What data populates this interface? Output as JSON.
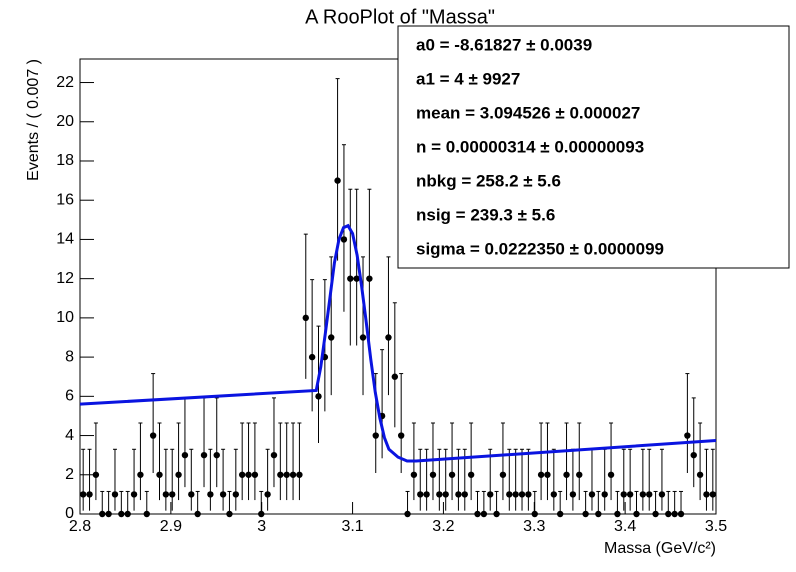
{
  "chart_data": {
    "type": "scatter",
    "title": "A RooPlot of \"Massa\"",
    "xlabel": "Massa (GeV/c²)",
    "ylabel": "Events / ( 0.007 )",
    "xlim": [
      2.8,
      3.5
    ],
    "ylim": [
      0,
      23.2
    ],
    "xticks": [
      2.8,
      2.9,
      3,
      3.1,
      3.2,
      3.3,
      3.4,
      3.5
    ],
    "yticks": [
      0,
      2,
      4,
      6,
      8,
      10,
      12,
      14,
      16,
      18,
      20,
      22
    ],
    "series": [
      {
        "color": "#000000",
        "x": [
          2.8035,
          2.8105,
          2.8175,
          2.8245,
          2.8315,
          2.8385,
          2.8455,
          2.8525,
          2.8595,
          2.8665,
          2.8735,
          2.8805,
          2.8875,
          2.8945,
          2.9015,
          2.9085,
          2.9155,
          2.9225,
          2.9295,
          2.9365,
          2.9435,
          2.9505,
          2.9575,
          2.9645,
          2.9715,
          2.9785,
          2.9855,
          2.9925,
          2.9995,
          3.0065,
          3.0135,
          3.0205,
          3.0275,
          3.0345,
          3.0415,
          3.0485,
          3.0555,
          3.0625,
          3.0695,
          3.0765,
          3.0835,
          3.0905,
          3.0975,
          3.1045,
          3.1115,
          3.1185,
          3.1255,
          3.1325,
          3.1395,
          3.1465,
          3.1535,
          3.1605,
          3.1675,
          3.1745,
          3.1815,
          3.1885,
          3.1955,
          3.2025,
          3.2095,
          3.2165,
          3.2235,
          3.2305,
          3.2375,
          3.2445,
          3.2515,
          3.2585,
          3.2655,
          3.2725,
          3.2795,
          3.2865,
          3.2935,
          3.3005,
          3.3075,
          3.3145,
          3.3215,
          3.3285,
          3.3355,
          3.3425,
          3.3495,
          3.3565,
          3.3635,
          3.3705,
          3.3775,
          3.3845,
          3.3915,
          3.3985,
          3.4055,
          3.4125,
          3.4195,
          3.4265,
          3.4335,
          3.4405,
          3.4475,
          3.4545,
          3.4615,
          3.4685,
          3.4755,
          3.4825,
          3.4895,
          3.4965
        ],
        "values": [
          1,
          1,
          2,
          0,
          0,
          1,
          0,
          0,
          1,
          2,
          0,
          4,
          2,
          1,
          1,
          2,
          3,
          1,
          0,
          3,
          1,
          3,
          1,
          0,
          1,
          2,
          2,
          2,
          0,
          1,
          3,
          2,
          2,
          2,
          2,
          10,
          8,
          6,
          8,
          9,
          17,
          14,
          12,
          12,
          9,
          12,
          4,
          5,
          9,
          7,
          4,
          0,
          2,
          1,
          1,
          2,
          1,
          1,
          2,
          1,
          1,
          2,
          0,
          0,
          1,
          0,
          2,
          1,
          1,
          1,
          1,
          0,
          2,
          2,
          1,
          0,
          2,
          1,
          2,
          0,
          1,
          0,
          1,
          2,
          0,
          1,
          1,
          0,
          1,
          1,
          0,
          1,
          0,
          0,
          0,
          4,
          3,
          2,
          1,
          1
        ],
        "err_low": [
          0.83,
          0.83,
          1.29,
          0,
          0,
          0.83,
          0,
          0,
          0.83,
          1.29,
          0,
          1.91,
          1.29,
          0.83,
          0.83,
          1.29,
          1.63,
          0.83,
          0,
          1.63,
          0.83,
          1.63,
          0.83,
          0,
          0.83,
          1.29,
          1.29,
          1.29,
          0,
          0.83,
          1.63,
          1.29,
          1.29,
          1.29,
          1.29,
          3.11,
          2.77,
          2.38,
          2.77,
          2.94,
          4.08,
          3.69,
          3.41,
          3.41,
          2.94,
          3.41,
          1.91,
          2.16,
          2.94,
          2.58,
          1.91,
          0,
          1.29,
          0.83,
          0.83,
          1.29,
          0.83,
          0.83,
          1.29,
          0.83,
          0.83,
          1.29,
          0,
          0,
          0.83,
          0,
          1.29,
          0.83,
          0.83,
          0.83,
          0.83,
          0,
          1.29,
          1.29,
          0.83,
          0,
          1.29,
          0.83,
          1.29,
          0,
          0.83,
          0,
          0.83,
          1.29,
          0,
          0.83,
          0.83,
          0,
          0.83,
          0.83,
          0,
          0.83,
          0,
          0,
          0,
          1.91,
          1.63,
          1.29,
          0.83,
          0.83
        ],
        "err_high": [
          2.3,
          2.3,
          2.64,
          1.15,
          1.15,
          2.3,
          1.15,
          1.15,
          2.3,
          2.64,
          1.15,
          3.16,
          2.64,
          2.3,
          2.3,
          2.64,
          2.92,
          2.3,
          1.15,
          2.92,
          2.3,
          2.92,
          2.3,
          1.15,
          2.3,
          2.64,
          2.64,
          2.64,
          1.15,
          2.3,
          2.92,
          2.64,
          2.64,
          2.64,
          2.64,
          4.27,
          3.95,
          3.58,
          3.95,
          4.11,
          5.2,
          4.83,
          4.56,
          4.56,
          4.11,
          4.56,
          3.16,
          3.38,
          4.11,
          3.77,
          3.16,
          1.15,
          2.64,
          2.3,
          2.3,
          2.64,
          2.3,
          2.3,
          2.64,
          2.3,
          2.3,
          2.64,
          1.15,
          1.15,
          2.3,
          1.15,
          2.64,
          2.3,
          2.3,
          2.3,
          2.3,
          1.15,
          2.64,
          2.64,
          2.3,
          1.15,
          2.64,
          2.3,
          2.64,
          1.15,
          2.3,
          1.15,
          2.3,
          2.64,
          1.15,
          2.3,
          2.3,
          1.15,
          2.3,
          2.3,
          1.15,
          2.3,
          1.15,
          1.15,
          1.15,
          3.16,
          2.92,
          2.64,
          2.3,
          2.3
        ]
      },
      {
        "type": "line",
        "color": "#0a14e0",
        "x": [
          2.8,
          3.06,
          3.065,
          3.07,
          3.075,
          3.08,
          3.085,
          3.09,
          3.095,
          3.1,
          3.105,
          3.11,
          3.115,
          3.12,
          3.125,
          3.13,
          3.135,
          3.14,
          3.15,
          3.16,
          3.17,
          3.5
        ],
        "values": [
          5.6,
          6.3,
          7.5,
          9.2,
          11.0,
          12.8,
          14.0,
          14.6,
          14.7,
          14.3,
          13.2,
          11.6,
          9.8,
          7.9,
          6.2,
          4.9,
          3.9,
          3.3,
          2.9,
          2.7,
          2.7,
          3.75
        ]
      }
    ],
    "stats": [
      "a0 = -8.61827 ± 0.0039",
      "a1 =  4 ± 9927",
      "mean =  3.094526 ± 0.000027",
      "n =  0.00000314 ± 0.00000093",
      "nbkg =  258.2 ± 5.6",
      "nsig =  239.3 ± 5.6",
      "sigma =  0.0222350 ± 0.0000099"
    ]
  }
}
